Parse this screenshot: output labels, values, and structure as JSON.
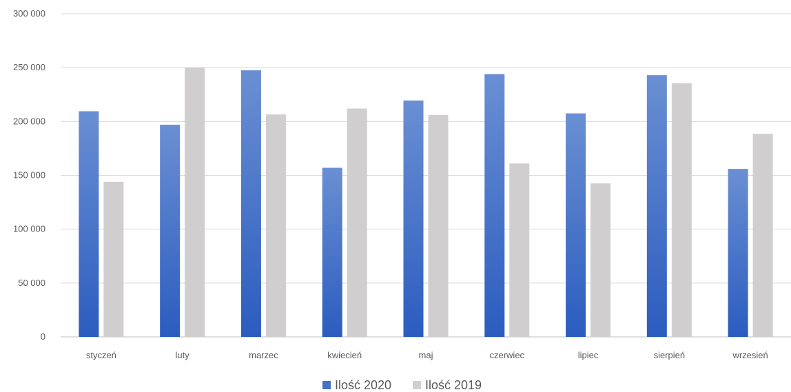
{
  "chart_data": {
    "type": "bar",
    "title": "",
    "xlabel": "",
    "ylabel": "",
    "categories": [
      "styczeń",
      "luty",
      "marzec",
      "kwiecień",
      "maj",
      "czerwiec",
      "lipiec",
      "sierpień",
      "wrzesień"
    ],
    "series": [
      {
        "name": "Ilość 2020",
        "color": "#4472c4",
        "values": [
          209500,
          197000,
          247500,
          157000,
          219500,
          244000,
          207500,
          243000,
          156000
        ]
      },
      {
        "name": "Ilość 2019",
        "color": "#d0cece",
        "values": [
          144000,
          250000,
          206500,
          212000,
          206000,
          161000,
          142500,
          235500,
          188500
        ]
      }
    ],
    "ylim": [
      0,
      300000
    ],
    "yticks": [
      0,
      50000,
      100000,
      150000,
      200000,
      250000,
      300000
    ],
    "ytick_labels": [
      "0",
      "50 000",
      "100 000",
      "150 000",
      "200 000",
      "250 000",
      "300 000"
    ],
    "grid": true,
    "legend_position": "bottom"
  }
}
